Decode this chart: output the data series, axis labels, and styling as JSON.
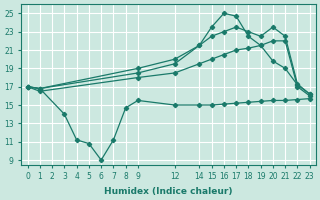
{
  "xlabel": "Humidex (Indice chaleur)",
  "bg_color": "#cce8e0",
  "line_color": "#1a7a6a",
  "grid_color": "#ffffff",
  "ylim": [
    8.5,
    26
  ],
  "xlim": [
    -0.5,
    23.5
  ],
  "yticks": [
    9,
    11,
    13,
    15,
    17,
    19,
    21,
    23,
    25
  ],
  "xticks": [
    0,
    1,
    2,
    3,
    4,
    5,
    6,
    7,
    8,
    9,
    12,
    14,
    15,
    16,
    17,
    18,
    19,
    20,
    21,
    22,
    23
  ],
  "xtick_labels": [
    "0",
    "1",
    "2",
    "3",
    "4",
    "5",
    "6",
    "7",
    "8",
    "9",
    "12",
    "14",
    "15",
    "16",
    "17",
    "18",
    "19",
    "20",
    "21",
    "22",
    "23"
  ],
  "series": [
    {
      "x": [
        0,
        1,
        3,
        4,
        5,
        6,
        7,
        8,
        9,
        12,
        14,
        15,
        16,
        17,
        18,
        19,
        20,
        21,
        22,
        23
      ],
      "y": [
        17,
        16.8,
        14,
        11.2,
        10.8,
        9.0,
        11.2,
        14.7,
        15.5,
        15.0,
        15.0,
        15.0,
        15.1,
        15.2,
        15.3,
        15.4,
        15.5,
        15.5,
        15.6,
        15.7
      ]
    },
    {
      "x": [
        0,
        1,
        9,
        12,
        14,
        15,
        16,
        17,
        18,
        19,
        20,
        21,
        22,
        23
      ],
      "y": [
        17,
        16.5,
        18.0,
        18.5,
        19.5,
        20.0,
        20.5,
        21.0,
        21.2,
        21.5,
        22.0,
        22.0,
        17.0,
        16.0
      ]
    },
    {
      "x": [
        0,
        1,
        9,
        12,
        14,
        15,
        16,
        17,
        18,
        19,
        20,
        21,
        22,
        23
      ],
      "y": [
        17,
        16.8,
        18.5,
        19.5,
        21.5,
        22.5,
        23.0,
        23.5,
        23.0,
        22.5,
        23.5,
        22.5,
        17.3,
        16.2
      ]
    },
    {
      "x": [
        0,
        1,
        9,
        12,
        14,
        15,
        16,
        17,
        18,
        19,
        20,
        21,
        22,
        23
      ],
      "y": [
        17,
        16.8,
        19.0,
        20.0,
        21.5,
        23.5,
        25.0,
        24.7,
        22.5,
        21.5,
        19.8,
        19.0,
        17.2,
        16.2
      ]
    }
  ]
}
